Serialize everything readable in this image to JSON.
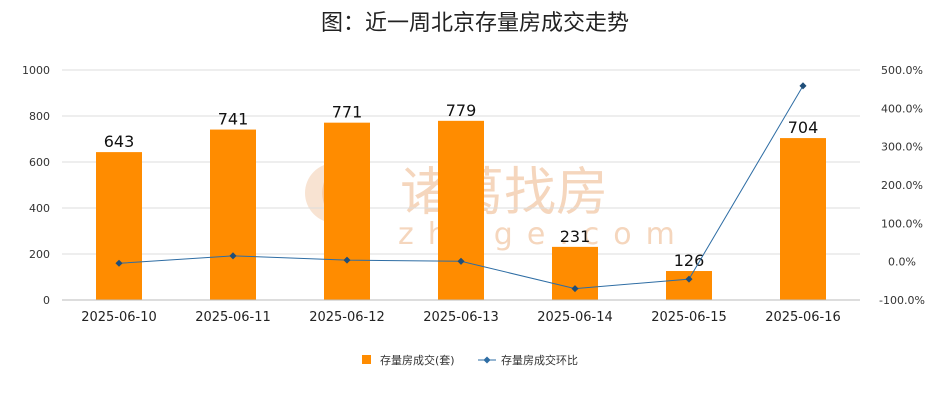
{
  "chart_data": {
    "type": "bar",
    "title": "图：近一周北京存量房成交走势",
    "categories": [
      "2025-06-10",
      "2025-06-11",
      "2025-06-12",
      "2025-06-13",
      "2025-06-14",
      "2025-06-15",
      "2025-06-16"
    ],
    "series": [
      {
        "name": "存量房成交(套)",
        "type": "bar",
        "axis": "left",
        "values": [
          643,
          741,
          771,
          779,
          231,
          126,
          704
        ],
        "color": "#ff8c00"
      },
      {
        "name": "存量房成交环比",
        "type": "line",
        "axis": "right",
        "unit": "%",
        "values": [
          -4.2,
          15.2,
          4.0,
          1.0,
          -70.3,
          -45.5,
          458.7
        ],
        "color": "#2e6da4"
      }
    ],
    "y_left": {
      "range": [
        0,
        1000
      ],
      "ticks": [
        "0",
        "200",
        "400",
        "600",
        "800",
        "1000"
      ]
    },
    "y_right": {
      "range": [
        -100,
        500
      ],
      "ticks": [
        "-100.0%",
        "0.0%",
        "100.0%",
        "200.0%",
        "300.0%",
        "400.0%",
        "500.0%"
      ]
    },
    "grid": "horizontal",
    "legend_position": "bottom-center",
    "watermark": {
      "cn": "诸葛找房",
      "en": "zhuge.com"
    }
  }
}
